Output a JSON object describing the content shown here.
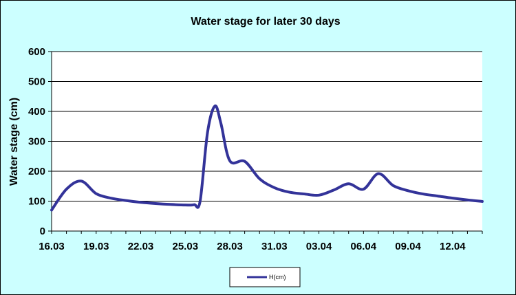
{
  "chart_data": {
    "type": "line",
    "title": "Water stage for later 30 days",
    "xlabel": "",
    "ylabel": "Water stage (cm)",
    "ylim": [
      0,
      600
    ],
    "yticks": [
      "0",
      "100",
      "200",
      "300",
      "400",
      "500",
      "600"
    ],
    "xticks": [
      "16.03",
      "19.03",
      "22.03",
      "25.03",
      "28.03",
      "31.03",
      "03.04",
      "06.04",
      "09.04",
      "12.04"
    ],
    "grid": "horizontal",
    "legend_position": "bottom-center",
    "series": [
      {
        "name": "H(cm)",
        "color": "#333399",
        "points": [
          {
            "x": 16.0,
            "y": 70
          },
          {
            "x": 17.0,
            "y": 140
          },
          {
            "x": 18.0,
            "y": 167
          },
          {
            "x": 19.0,
            "y": 125
          },
          {
            "x": 20.0,
            "y": 110
          },
          {
            "x": 21.0,
            "y": 102
          },
          {
            "x": 22.0,
            "y": 96
          },
          {
            "x": 23.0,
            "y": 92
          },
          {
            "x": 24.0,
            "y": 89
          },
          {
            "x": 25.0,
            "y": 87
          },
          {
            "x": 25.6,
            "y": 88
          },
          {
            "x": 26.0,
            "y": 100
          },
          {
            "x": 26.5,
            "y": 330
          },
          {
            "x": 27.0,
            "y": 418
          },
          {
            "x": 27.4,
            "y": 360
          },
          {
            "x": 28.0,
            "y": 235
          },
          {
            "x": 29.0,
            "y": 233
          },
          {
            "x": 30.0,
            "y": 175
          },
          {
            "x": 31.0,
            "y": 145
          },
          {
            "x": 32.0,
            "y": 130
          },
          {
            "x": 33.0,
            "y": 124
          },
          {
            "x": 34.0,
            "y": 120
          },
          {
            "x": 35.0,
            "y": 137
          },
          {
            "x": 36.0,
            "y": 158
          },
          {
            "x": 37.0,
            "y": 140
          },
          {
            "x": 38.0,
            "y": 192
          },
          {
            "x": 39.0,
            "y": 152
          },
          {
            "x": 40.0,
            "y": 135
          },
          {
            "x": 41.0,
            "y": 124
          },
          {
            "x": 42.0,
            "y": 117
          },
          {
            "x": 43.0,
            "y": 110
          },
          {
            "x": 44.0,
            "y": 104
          },
          {
            "x": 45.0,
            "y": 99
          }
        ]
      }
    ]
  }
}
